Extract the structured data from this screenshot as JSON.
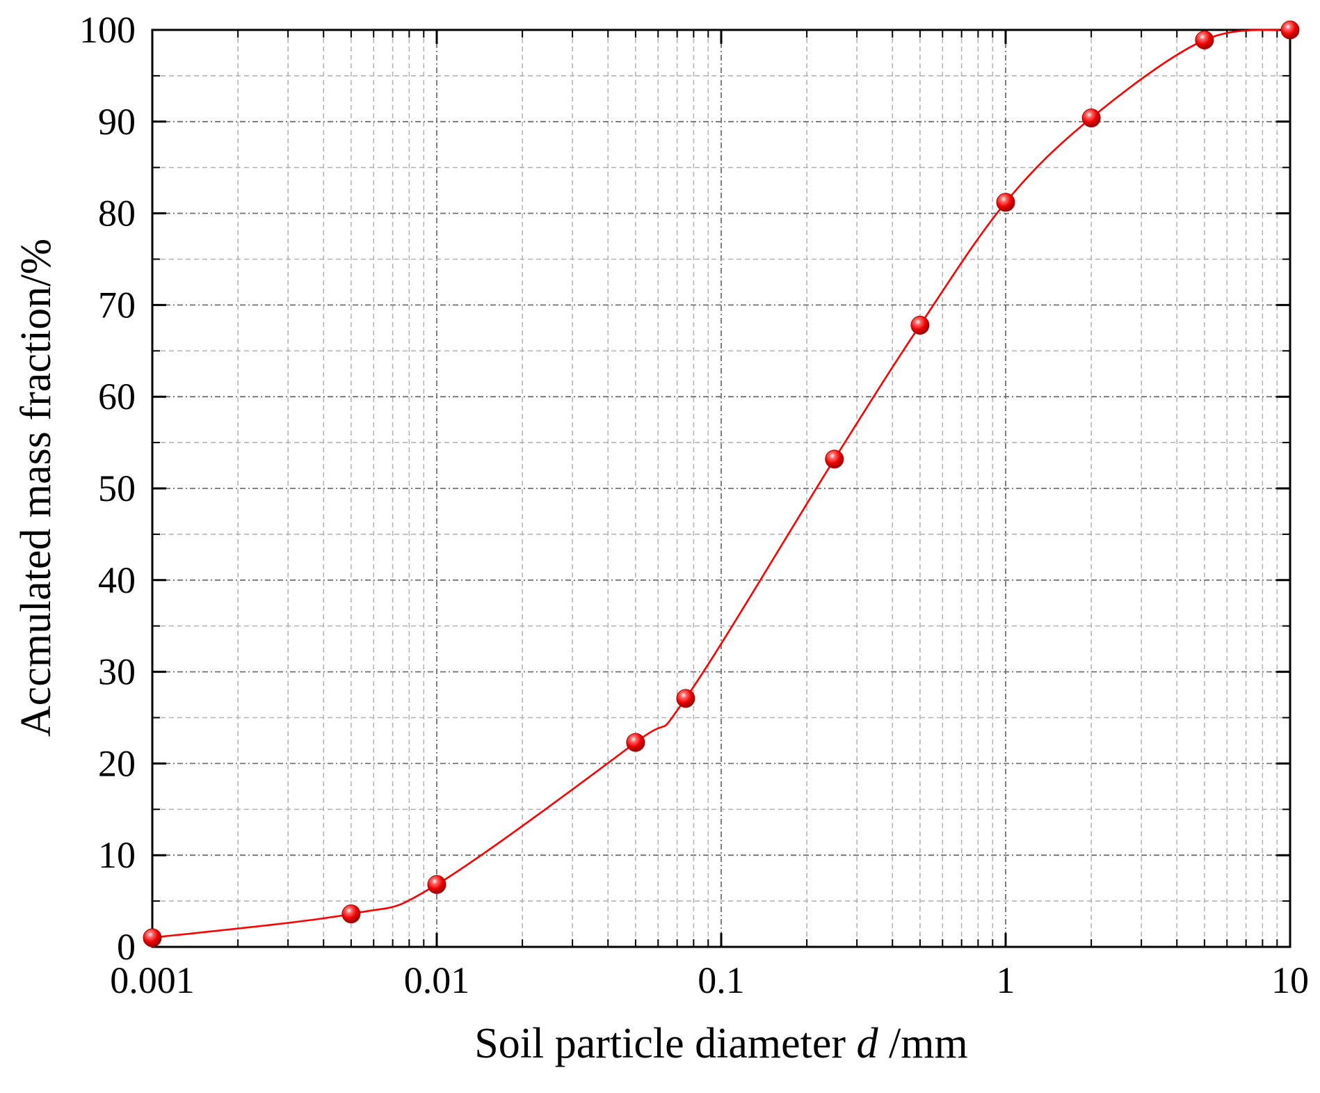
{
  "chart_data": {
    "type": "scatter",
    "title": "",
    "xlabel": {
      "prefix": "Soil particle diameter ",
      "italic": "d",
      "suffix": " /mm"
    },
    "ylabel": "Accmulated mass fraction/%",
    "xscale": "log",
    "xlim": [
      0.001,
      10
    ],
    "ylim": [
      0,
      100
    ],
    "x_ticks": [
      0.001,
      0.01,
      0.1,
      1,
      10
    ],
    "x_tick_labels": [
      "0.001",
      "0.01",
      "0.1",
      "1",
      "10"
    ],
    "y_ticks": [
      0,
      10,
      20,
      30,
      40,
      50,
      60,
      70,
      80,
      90,
      100
    ],
    "y_tick_labels": [
      "0",
      "10",
      "20",
      "30",
      "40",
      "50",
      "60",
      "70",
      "80",
      "90",
      "100"
    ],
    "grid": true,
    "legend": "none",
    "series": [
      {
        "color": "#ff0000",
        "marker": "sphere",
        "smooth_line": true,
        "x": [
          0.001,
          0.005,
          0.01,
          0.05,
          0.075,
          0.25,
          0.5,
          1,
          2,
          5,
          10
        ],
        "y": [
          1.0,
          3.6,
          6.8,
          22.3,
          27.1,
          53.2,
          67.8,
          81.2,
          90.4,
          98.9,
          100
        ]
      }
    ]
  }
}
